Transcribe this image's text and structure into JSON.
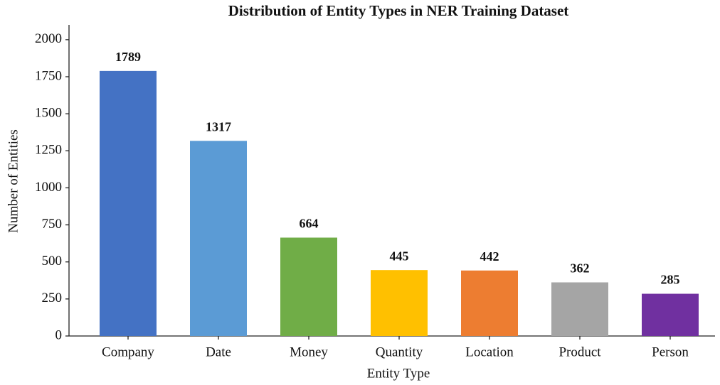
{
  "chart_data": {
    "type": "bar",
    "title": "Distribution of Entity Types in NER Training Dataset",
    "x_label": "Entity Type",
    "y_label": "Number of Entities",
    "categories": [
      "Company",
      "Date",
      "Money",
      "Quantity",
      "Location",
      "Product",
      "Person"
    ],
    "values": [
      1789,
      1317,
      664,
      445,
      442,
      362,
      285
    ],
    "colors": [
      "#4472c4",
      "#5b9bd5",
      "#70ad47",
      "#ffc000",
      "#ed7d31",
      "#a5a5a5",
      "#7030a0"
    ],
    "ylim": [
      0,
      2100
    ],
    "yticks": [
      0,
      250,
      500,
      750,
      1000,
      1250,
      1500,
      1750,
      2000
    ],
    "grid": false
  }
}
